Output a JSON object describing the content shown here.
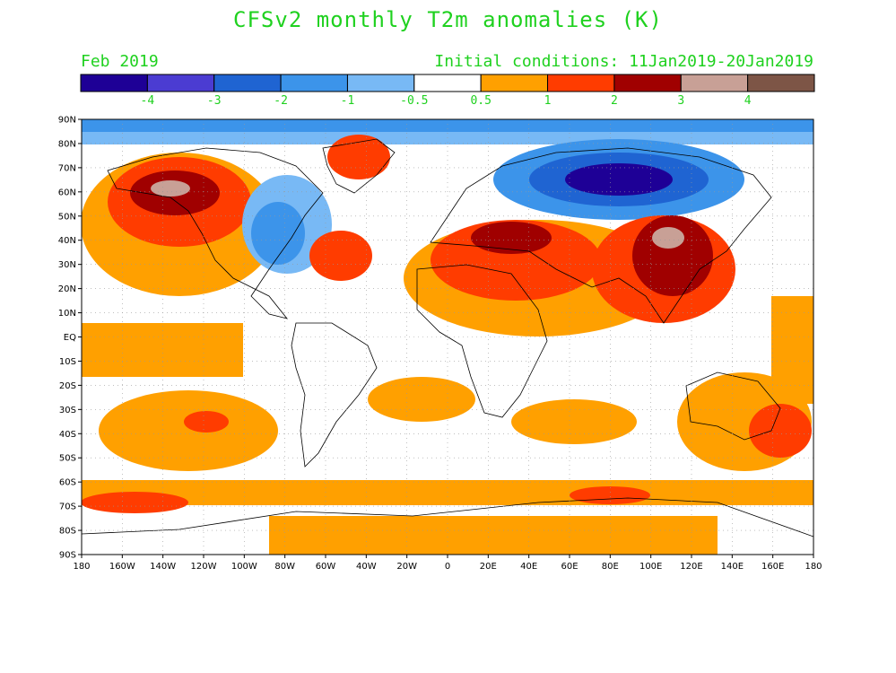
{
  "title": "CFSv2 monthly T2m anomalies (K)",
  "valid_month": "Feb 2019",
  "initial_conditions": "Initial conditions: 11Jan2019-20Jan2019",
  "colorbar": {
    "colors": [
      "#1e0096",
      "#4b3cd2",
      "#1f64d2",
      "#3c94ea",
      "#78b9f5",
      "#ffffff",
      "#ffa000",
      "#ff3c00",
      "#a00000",
      "#c8a096",
      "#7d5546"
    ],
    "labels": [
      "-4",
      "-3",
      "-2",
      "-1",
      "-0.5",
      "0.5",
      "1",
      "2",
      "3",
      "4"
    ]
  },
  "map": {
    "lat_ticks": [
      "90N",
      "80N",
      "70N",
      "60N",
      "50N",
      "40N",
      "30N",
      "20N",
      "10N",
      "EQ",
      "10S",
      "20S",
      "30S",
      "40S",
      "50S",
      "60S",
      "70S",
      "80S",
      "90S"
    ],
    "lon_ticks": [
      "180",
      "160W",
      "140W",
      "120W",
      "100W",
      "80W",
      "60W",
      "40W",
      "20W",
      "0",
      "20E",
      "40E",
      "60E",
      "80E",
      "100E",
      "120E",
      "140E",
      "160E",
      "180"
    ]
  }
}
